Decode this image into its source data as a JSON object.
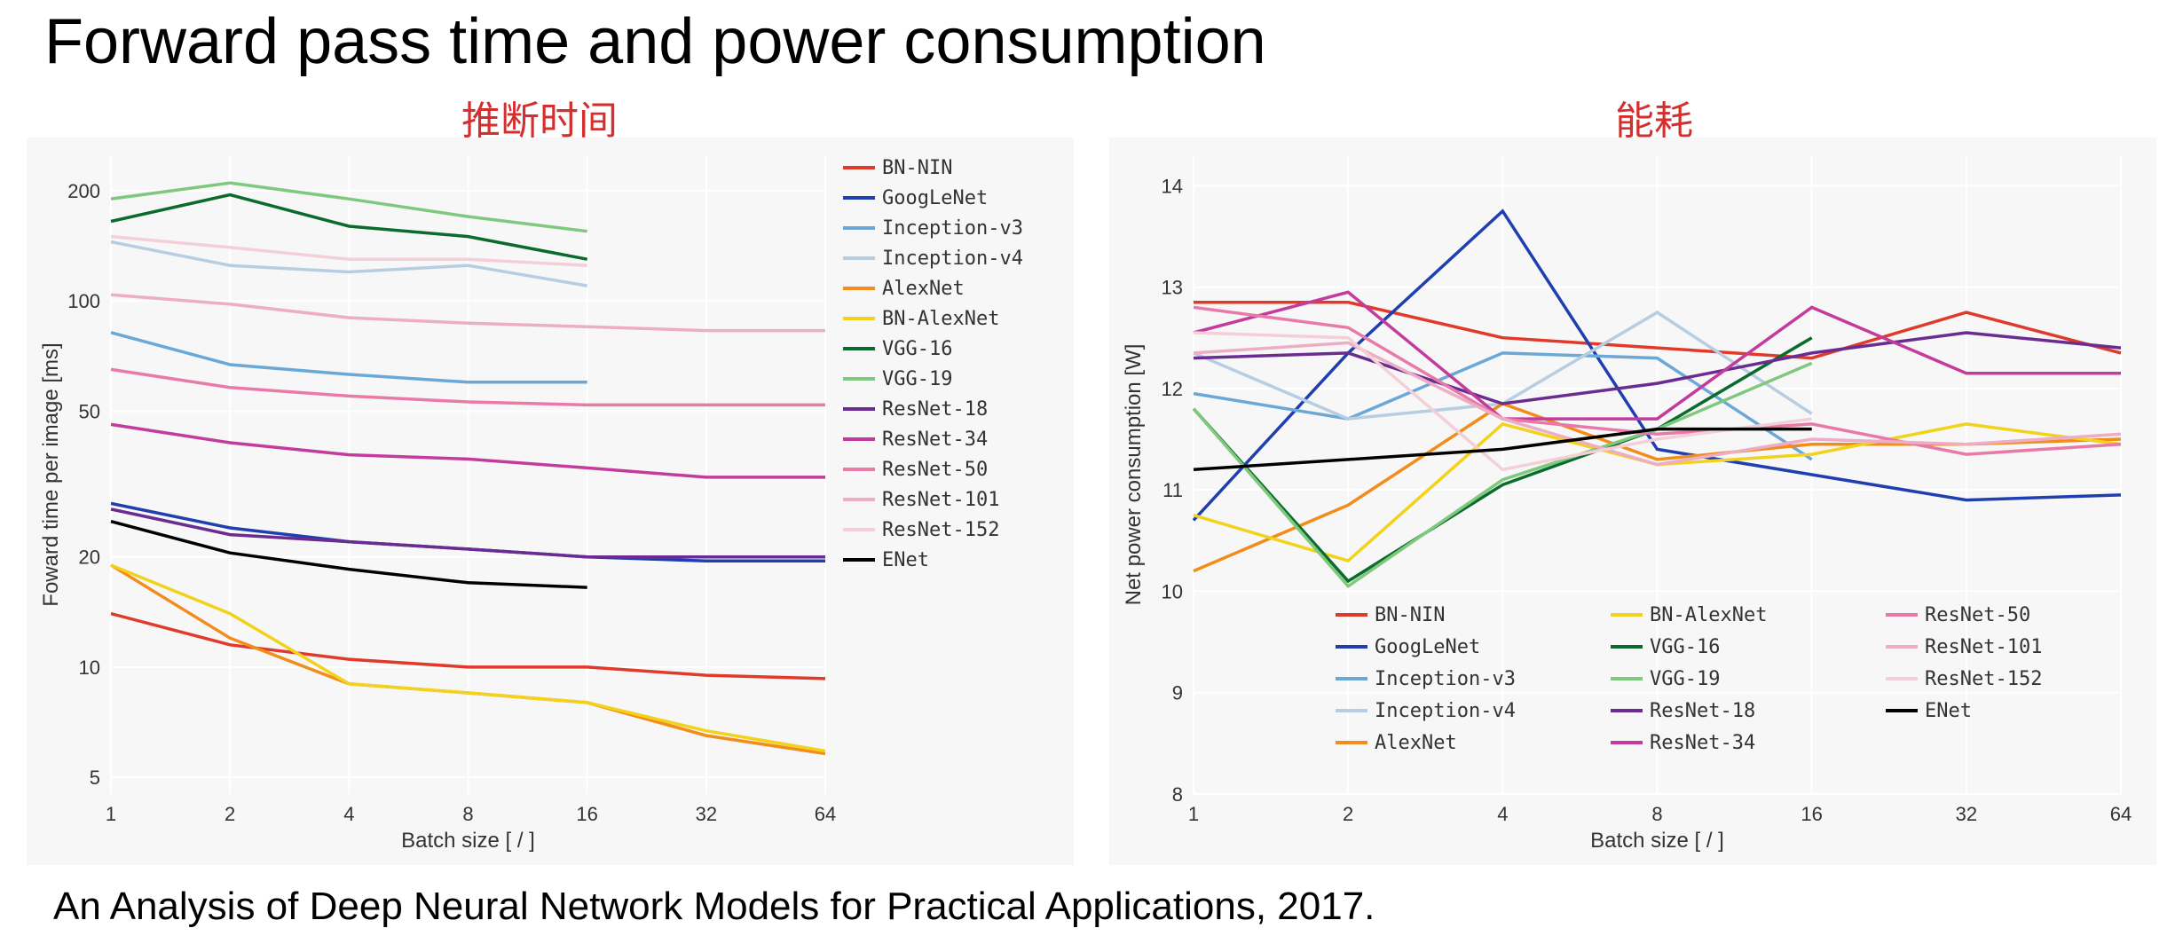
{
  "title": "Forward pass time and power consumption",
  "caption": "An Analysis of Deep Neural Network Models for Practical Applications, 2017.",
  "annotations": {
    "left": "推断时间",
    "right": "能耗"
  },
  "colors": {
    "BN-NIN": "#e03a2a",
    "GoogLeNet": "#1f3fb0",
    "Inception-v3": "#6aa8d8",
    "Inception-v4": "#b7cde2",
    "AlexNet": "#f28c1a",
    "BN-AlexNet": "#f2d21a",
    "VGG-16": "#0a6b2c",
    "VGG-19": "#7fc97f",
    "ResNet-18": "#6a2c91",
    "ResNet-34": "#c43b9e",
    "ResNet-50": "#e97aa8",
    "ResNet-101": "#edadc5",
    "ResNet-152": "#f4cfd8",
    "ENet": "#000000"
  },
  "chart_left": {
    "type": "line",
    "ylabel": "Foward time per image [ms]",
    "xlabel": "Batch size [ / ]",
    "yscale": "log",
    "xscale": "log",
    "y_ticks": [
      5,
      10,
      20,
      50,
      100,
      200
    ],
    "ylim": [
      4.5,
      250
    ],
    "x_ticks": [
      1,
      2,
      4,
      8,
      16,
      32,
      64
    ],
    "xlim": [
      1,
      64
    ],
    "background": "#f7f7f7",
    "grid_color": "#ffffff",
    "line_width": 3.5,
    "label_fontsize": 24,
    "tick_fontsize": 22,
    "legend_fontsize": 22,
    "legend_pos": "right",
    "order": [
      "BN-NIN",
      "GoogLeNet",
      "Inception-v3",
      "Inception-v4",
      "AlexNet",
      "BN-AlexNet",
      "VGG-16",
      "VGG-19",
      "ResNet-18",
      "ResNet-34",
      "ResNet-50",
      "ResNet-101",
      "ResNet-152",
      "ENet"
    ],
    "series": {
      "BN-NIN": {
        "x": [
          1,
          2,
          4,
          8,
          16,
          32,
          64
        ],
        "y": [
          14,
          11.5,
          10.5,
          10,
          10,
          9.5,
          9.3
        ]
      },
      "GoogLeNet": {
        "x": [
          1,
          2,
          4,
          8,
          16,
          32,
          64
        ],
        "y": [
          28,
          24,
          22,
          21,
          20,
          19.5,
          19.5
        ]
      },
      "Inception-v3": {
        "x": [
          1,
          2,
          4,
          8,
          16
        ],
        "y": [
          82,
          67,
          63,
          60,
          60
        ]
      },
      "Inception-v4": {
        "x": [
          1,
          2,
          4,
          8,
          16
        ],
        "y": [
          145,
          125,
          120,
          125,
          110
        ]
      },
      "AlexNet": {
        "x": [
          1,
          2,
          4,
          8,
          16,
          32,
          64
        ],
        "y": [
          19,
          12,
          9,
          8.5,
          8,
          6.5,
          5.8
        ]
      },
      "BN-AlexNet": {
        "x": [
          1,
          2,
          4,
          8,
          16,
          32,
          64
        ],
        "y": [
          19,
          14,
          9,
          8.5,
          8,
          6.7,
          5.9
        ]
      },
      "VGG-16": {
        "x": [
          1,
          2,
          4,
          8,
          16
        ],
        "y": [
          165,
          195,
          160,
          150,
          130
        ]
      },
      "VGG-19": {
        "x": [
          1,
          2,
          4,
          8,
          16
        ],
        "y": [
          190,
          210,
          190,
          170,
          155
        ]
      },
      "ResNet-18": {
        "x": [
          1,
          2,
          4,
          8,
          16,
          32,
          64
        ],
        "y": [
          27,
          23,
          22,
          21,
          20,
          20,
          20
        ]
      },
      "ResNet-34": {
        "x": [
          1,
          2,
          4,
          8,
          16,
          32,
          64
        ],
        "y": [
          46,
          41,
          38,
          37,
          35,
          33,
          33
        ]
      },
      "ResNet-50": {
        "x": [
          1,
          2,
          4,
          8,
          16,
          32,
          64
        ],
        "y": [
          65,
          58,
          55,
          53,
          52,
          52,
          52
        ]
      },
      "ResNet-101": {
        "x": [
          1,
          2,
          4,
          8,
          16,
          32,
          64
        ],
        "y": [
          104,
          98,
          90,
          87,
          85,
          83,
          83
        ]
      },
      "ResNet-152": {
        "x": [
          1,
          2,
          4,
          8,
          16
        ],
        "y": [
          150,
          140,
          130,
          130,
          125
        ]
      },
      "ENet": {
        "x": [
          1,
          2,
          4,
          8,
          16
        ],
        "y": [
          25,
          20.5,
          18.5,
          17,
          16.5
        ]
      }
    }
  },
  "chart_right": {
    "type": "line",
    "ylabel": "Net power consumption [W]",
    "xlabel": "Batch size [ / ]",
    "yscale": "linear",
    "xscale": "log",
    "y_ticks": [
      8,
      9,
      10,
      11,
      12,
      13,
      14
    ],
    "ylim": [
      8,
      14.3
    ],
    "x_ticks": [
      1,
      2,
      4,
      8,
      16,
      32,
      64
    ],
    "xlim": [
      1,
      64
    ],
    "background": "#f7f7f7",
    "grid_color": "#ffffff",
    "line_width": 3.5,
    "label_fontsize": 24,
    "tick_fontsize": 22,
    "legend_fontsize": 22,
    "legend_pos": "bottom-inside-3col",
    "legend_columns": [
      [
        "BN-NIN",
        "GoogLeNet",
        "Inception-v3",
        "Inception-v4",
        "AlexNet"
      ],
      [
        "BN-AlexNet",
        "VGG-16",
        "VGG-19",
        "ResNet-18",
        "ResNet-34"
      ],
      [
        "ResNet-50",
        "ResNet-101",
        "ResNet-152",
        "ENet"
      ]
    ],
    "series": {
      "BN-NIN": {
        "x": [
          1,
          2,
          4,
          8,
          16,
          32,
          64
        ],
        "y": [
          12.85,
          12.85,
          12.5,
          12.4,
          12.3,
          12.75,
          12.35
        ]
      },
      "GoogLeNet": {
        "x": [
          1,
          2,
          4,
          8,
          16,
          32,
          64
        ],
        "y": [
          10.7,
          12.35,
          13.75,
          11.4,
          11.15,
          10.9,
          10.95
        ]
      },
      "Inception-v3": {
        "x": [
          1,
          2,
          4,
          8,
          16
        ],
        "y": [
          11.95,
          11.7,
          12.35,
          12.3,
          11.3
        ]
      },
      "Inception-v4": {
        "x": [
          1,
          2,
          4,
          8,
          16
        ],
        "y": [
          12.35,
          11.7,
          11.85,
          12.75,
          11.75
        ]
      },
      "AlexNet": {
        "x": [
          1,
          2,
          4,
          8,
          16,
          32,
          64
        ],
        "y": [
          10.2,
          10.85,
          11.85,
          11.3,
          11.45,
          11.45,
          11.5
        ]
      },
      "BN-AlexNet": {
        "x": [
          1,
          2,
          4,
          8,
          16,
          32,
          64
        ],
        "y": [
          10.75,
          10.3,
          11.65,
          11.25,
          11.35,
          11.65,
          11.45
        ]
      },
      "VGG-16": {
        "x": [
          1,
          2,
          4,
          8,
          16
        ],
        "y": [
          11.8,
          10.1,
          11.05,
          11.6,
          12.5
        ]
      },
      "VGG-19": {
        "x": [
          1,
          2,
          4,
          8,
          16
        ],
        "y": [
          11.8,
          10.05,
          11.1,
          11.6,
          12.25
        ]
      },
      "ResNet-18": {
        "x": [
          1,
          2,
          4,
          8,
          16,
          32,
          64
        ],
        "y": [
          12.3,
          12.35,
          11.85,
          12.05,
          12.35,
          12.55,
          12.4
        ]
      },
      "ResNet-34": {
        "x": [
          1,
          2,
          4,
          8,
          16,
          32,
          64
        ],
        "y": [
          12.55,
          12.95,
          11.7,
          11.7,
          12.8,
          12.15,
          12.15
        ]
      },
      "ResNet-50": {
        "x": [
          1,
          2,
          4,
          8,
          16,
          32,
          64
        ],
        "y": [
          12.8,
          12.6,
          11.7,
          11.55,
          11.65,
          11.35,
          11.45
        ]
      },
      "ResNet-101": {
        "x": [
          1,
          2,
          4,
          8,
          16,
          32,
          64
        ],
        "y": [
          12.35,
          12.45,
          11.7,
          11.25,
          11.5,
          11.45,
          11.55
        ]
      },
      "ResNet-152": {
        "x": [
          1,
          2,
          4,
          8,
          16
        ],
        "y": [
          12.55,
          12.5,
          11.2,
          11.5,
          11.7
        ]
      },
      "ENet": {
        "x": [
          1,
          2,
          4,
          8,
          16
        ],
        "y": [
          11.2,
          11.3,
          11.4,
          11.6,
          11.6
        ]
      }
    }
  }
}
